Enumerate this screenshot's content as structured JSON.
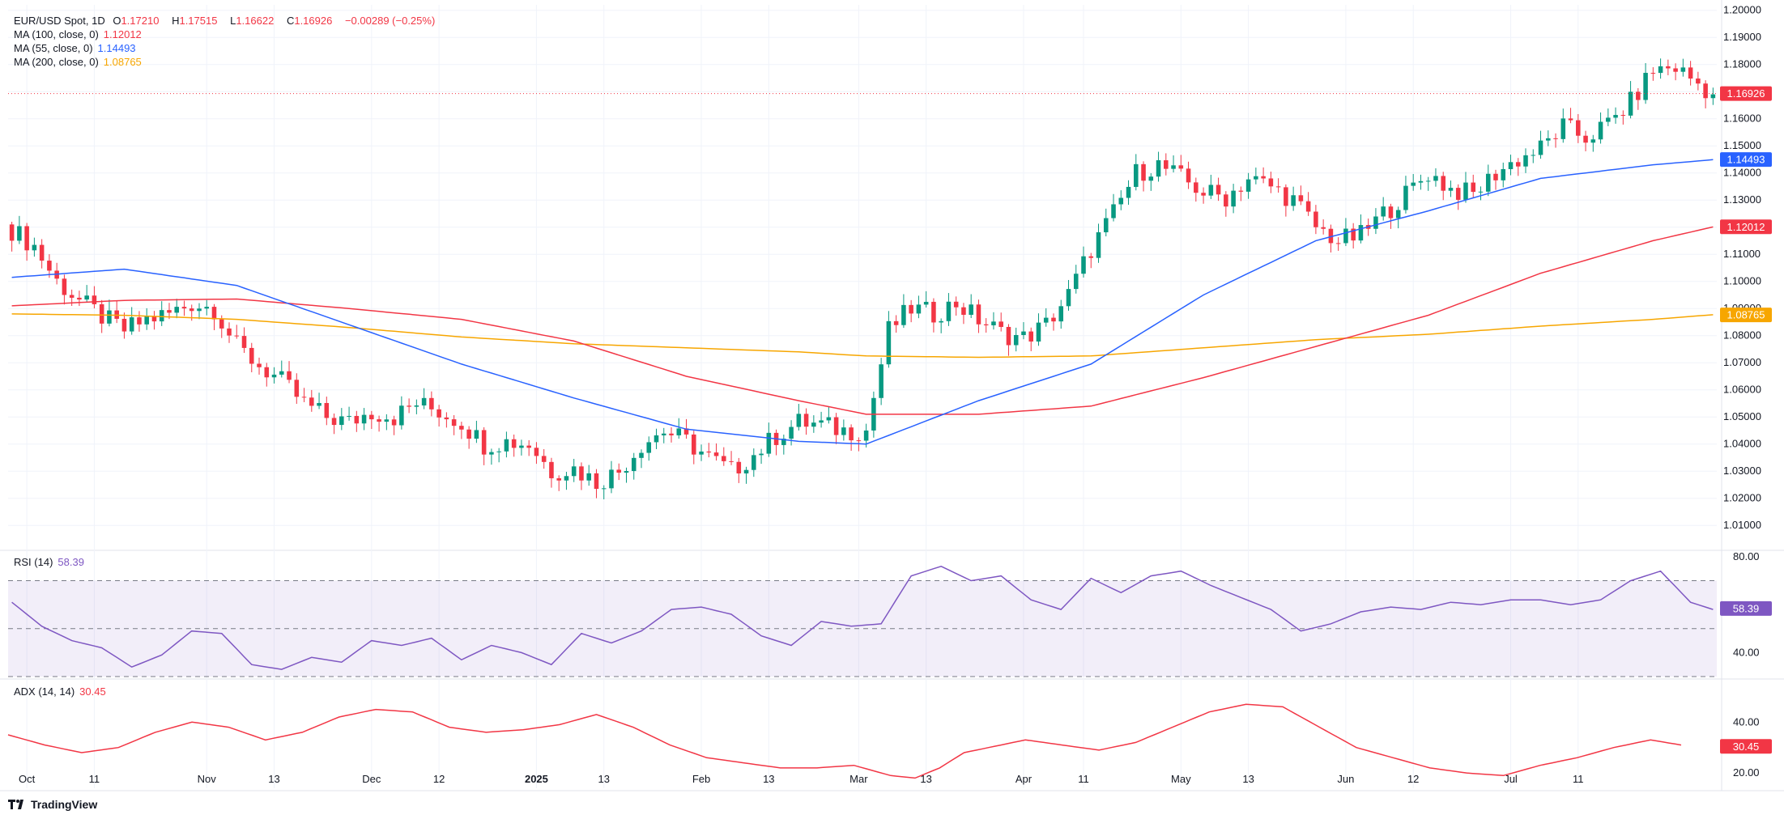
{
  "legend": {
    "symbol": "EUR/USD Spot, 1D",
    "open_k": "O",
    "open_v": "1.17210",
    "high_k": "H",
    "high_v": "1.17515",
    "low_k": "L",
    "low_v": "1.16622",
    "close_k": "C",
    "close_v": "1.16926",
    "change": "−0.00289 (−0.25%)",
    "ma100_label": "MA (100, close, 0)",
    "ma100_value": "1.12012",
    "ma55_label": "MA (55, close, 0)",
    "ma55_value": "1.14493",
    "ma200_label": "MA (200, close, 0)",
    "ma200_value": "1.08765",
    "rsi_label": "RSI (14)",
    "rsi_value": "58.39",
    "adx_label": "ADX (14, 14)",
    "adx_value": "30.45"
  },
  "colors": {
    "up": "#089981",
    "down": "#f23645",
    "ma55": "#2962ff",
    "ma100": "#f23645",
    "ma200": "#f7a600",
    "rsi": "#7e57c2",
    "adx": "#f23645",
    "grid": "#f0f3fa"
  },
  "footer": {
    "brand": "TradingView"
  },
  "chart_data": [
    {
      "type": "candlestick",
      "title": "EUR/USD Spot, 1D",
      "ylim": [
        1.002,
        1.202
      ],
      "y_ticks": [
        "1.20000",
        "1.19000",
        "1.18000",
        "1.17000",
        "1.16000",
        "1.15000",
        "1.14000",
        "1.13000",
        "1.12000",
        "1.11000",
        "1.10000",
        "1.09000",
        "1.08000",
        "1.07000",
        "1.06000",
        "1.05000",
        "1.04000",
        "1.03000",
        "1.02000",
        "1.01000"
      ],
      "x_ticks": [
        "Oct",
        "11",
        "Nov",
        "13",
        "Dec",
        "12",
        "2025",
        "13",
        "Feb",
        "13",
        "Mar",
        "13",
        "Apr",
        "11",
        "May",
        "13",
        "Jun",
        "12",
        "Jul",
        "11"
      ],
      "last_price_label": "1.16926",
      "ma_labels": {
        "ma55": "1.14493",
        "ma100": "1.12012",
        "ma200": "1.08765"
      },
      "anchors": [
        [
          0,
          1.119
        ],
        [
          3,
          1.113
        ],
        [
          6,
          1.1
        ],
        [
          9,
          1.093
        ],
        [
          12,
          1.087
        ],
        [
          15,
          1.082
        ],
        [
          18,
          1.086
        ],
        [
          21,
          1.088
        ],
        [
          24,
          1.092
        ],
        [
          27,
          1.09
        ],
        [
          30,
          1.076
        ],
        [
          33,
          1.069
        ],
        [
          36,
          1.063
        ],
        [
          39,
          1.055
        ],
        [
          42,
          1.05
        ],
        [
          45,
          1.048
        ],
        [
          48,
          1.052
        ],
        [
          51,
          1.05
        ],
        [
          54,
          1.055
        ],
        [
          57,
          1.052
        ],
        [
          60,
          1.048
        ],
        [
          63,
          1.04
        ],
        [
          66,
          1.041
        ],
        [
          69,
          1.04
        ],
        [
          72,
          1.03
        ],
        [
          75,
          1.031
        ],
        [
          78,
          1.026
        ],
        [
          81,
          1.03
        ],
        [
          84,
          1.04
        ],
        [
          87,
          1.045
        ],
        [
          90,
          1.041
        ],
        [
          93,
          1.035
        ],
        [
          96,
          1.03
        ],
        [
          99,
          1.036
        ],
        [
          102,
          1.043
        ],
        [
          105,
          1.048
        ],
        [
          108,
          1.047
        ],
        [
          111,
          1.045
        ],
        [
          114,
          1.045
        ],
        [
          117,
          1.082
        ],
        [
          120,
          1.09
        ],
        [
          123,
          1.088
        ],
        [
          126,
          1.092
        ],
        [
          129,
          1.086
        ],
        [
          132,
          1.081
        ],
        [
          135,
          1.079
        ],
        [
          138,
          1.084
        ],
        [
          141,
          1.095
        ],
        [
          144,
          1.112
        ],
        [
          147,
          1.125
        ],
        [
          150,
          1.14
        ],
        [
          153,
          1.143
        ],
        [
          156,
          1.138
        ],
        [
          159,
          1.133
        ],
        [
          162,
          1.131
        ],
        [
          165,
          1.138
        ],
        [
          168,
          1.135
        ],
        [
          171,
          1.13
        ],
        [
          174,
          1.12
        ],
        [
          177,
          1.115
        ],
        [
          180,
          1.117
        ],
        [
          183,
          1.125
        ],
        [
          186,
          1.132
        ],
        [
          189,
          1.14
        ],
        [
          192,
          1.134
        ],
        [
          195,
          1.132
        ],
        [
          198,
          1.14
        ],
        [
          201,
          1.145
        ],
        [
          204,
          1.149
        ],
        [
          207,
          1.157
        ],
        [
          210,
          1.153
        ],
        [
          213,
          1.158
        ],
        [
          216,
          1.166
        ],
        [
          219,
          1.178
        ],
        [
          222,
          1.179
        ],
        [
          225,
          1.173
        ],
        [
          227,
          1.169
        ]
      ],
      "ma55_anchors": [
        [
          0,
          1.1015
        ],
        [
          15,
          1.1045
        ],
        [
          30,
          1.0985
        ],
        [
          45,
          1.084
        ],
        [
          60,
          1.0695
        ],
        [
          75,
          1.057
        ],
        [
          90,
          1.0455
        ],
        [
          105,
          1.041
        ],
        [
          114,
          1.04
        ],
        [
          129,
          1.056
        ],
        [
          144,
          1.0695
        ],
        [
          159,
          1.095
        ],
        [
          174,
          1.115
        ],
        [
          189,
          1.126
        ],
        [
          204,
          1.138
        ],
        [
          219,
          1.143
        ],
        [
          227,
          1.1449
        ]
      ],
      "ma100_anchors": [
        [
          0,
          1.091
        ],
        [
          15,
          1.093
        ],
        [
          30,
          1.0935
        ],
        [
          45,
          1.09
        ],
        [
          60,
          1.086
        ],
        [
          75,
          1.078
        ],
        [
          90,
          1.065
        ],
        [
          105,
          1.056
        ],
        [
          114,
          1.051
        ],
        [
          129,
          1.051
        ],
        [
          144,
          1.054
        ],
        [
          159,
          1.0645
        ],
        [
          174,
          1.076
        ],
        [
          189,
          1.0875
        ],
        [
          204,
          1.103
        ],
        [
          219,
          1.115
        ],
        [
          227,
          1.1201
        ]
      ],
      "ma200_anchors": [
        [
          0,
          1.088
        ],
        [
          15,
          1.0875
        ],
        [
          30,
          1.086
        ],
        [
          45,
          1.083
        ],
        [
          60,
          1.0795
        ],
        [
          75,
          1.077
        ],
        [
          90,
          1.0755
        ],
        [
          105,
          1.074
        ],
        [
          114,
          1.0725
        ],
        [
          129,
          1.072
        ],
        [
          144,
          1.0725
        ],
        [
          159,
          1.0755
        ],
        [
          174,
          1.0785
        ],
        [
          189,
          1.0805
        ],
        [
          204,
          1.0835
        ],
        [
          219,
          1.086
        ],
        [
          227,
          1.0877
        ]
      ]
    },
    {
      "type": "line",
      "title": "RSI (14)",
      "ylim": [
        30,
        82
      ],
      "y_ticks": [
        "80.00",
        "40.00"
      ],
      "band": [
        30,
        70
      ],
      "mid": 50,
      "last_label": "58.39",
      "anchors": [
        [
          0,
          61
        ],
        [
          4,
          51
        ],
        [
          8,
          45
        ],
        [
          12,
          42
        ],
        [
          16,
          34
        ],
        [
          20,
          39
        ],
        [
          24,
          49
        ],
        [
          28,
          48
        ],
        [
          32,
          35
        ],
        [
          36,
          33
        ],
        [
          40,
          38
        ],
        [
          44,
          36
        ],
        [
          48,
          45
        ],
        [
          52,
          43
        ],
        [
          56,
          46
        ],
        [
          60,
          37
        ],
        [
          64,
          43
        ],
        [
          68,
          40
        ],
        [
          72,
          35
        ],
        [
          76,
          48
        ],
        [
          80,
          44
        ],
        [
          84,
          49
        ],
        [
          88,
          58
        ],
        [
          92,
          59
        ],
        [
          96,
          56
        ],
        [
          100,
          47
        ],
        [
          104,
          43
        ],
        [
          108,
          53
        ],
        [
          112,
          51
        ],
        [
          116,
          52
        ],
        [
          120,
          72
        ],
        [
          124,
          76
        ],
        [
          128,
          70
        ],
        [
          132,
          72
        ],
        [
          136,
          62
        ],
        [
          140,
          58
        ],
        [
          144,
          71
        ],
        [
          148,
          65
        ],
        [
          152,
          72
        ],
        [
          156,
          74
        ],
        [
          160,
          68
        ],
        [
          164,
          63
        ],
        [
          168,
          58
        ],
        [
          172,
          49
        ],
        [
          176,
          52
        ],
        [
          180,
          57
        ],
        [
          184,
          59
        ],
        [
          188,
          58
        ],
        [
          192,
          61
        ],
        [
          196,
          60
        ],
        [
          200,
          62
        ],
        [
          204,
          62
        ],
        [
          208,
          60
        ],
        [
          212,
          62
        ],
        [
          216,
          70
        ],
        [
          220,
          74
        ],
        [
          224,
          61
        ],
        [
          227,
          58
        ]
      ]
    },
    {
      "type": "line",
      "title": "ADX (14, 14)",
      "ylim": [
        14,
        56
      ],
      "y_ticks": [
        "40.00",
        "20.00"
      ],
      "last_label": "30.45",
      "anchors": [
        [
          0,
          35
        ],
        [
          6,
          31
        ],
        [
          12,
          28
        ],
        [
          18,
          30
        ],
        [
          24,
          36
        ],
        [
          30,
          40
        ],
        [
          36,
          38
        ],
        [
          42,
          33
        ],
        [
          48,
          36
        ],
        [
          54,
          42
        ],
        [
          60,
          45
        ],
        [
          66,
          44
        ],
        [
          72,
          38
        ],
        [
          78,
          36
        ],
        [
          84,
          37
        ],
        [
          90,
          39
        ],
        [
          96,
          43
        ],
        [
          102,
          38
        ],
        [
          108,
          31
        ],
        [
          114,
          26
        ],
        [
          120,
          24
        ],
        [
          126,
          22
        ],
        [
          132,
          22
        ],
        [
          138,
          23
        ],
        [
          144,
          19
        ],
        [
          148,
          18
        ],
        [
          152,
          22
        ],
        [
          156,
          28
        ],
        [
          160,
          30
        ],
        [
          166,
          33
        ],
        [
          172,
          31
        ],
        [
          178,
          29
        ],
        [
          184,
          32
        ],
        [
          190,
          38
        ],
        [
          196,
          44
        ],
        [
          202,
          47
        ],
        [
          208,
          46
        ],
        [
          214,
          38
        ],
        [
          220,
          30
        ],
        [
          226,
          26
        ],
        [
          232,
          22
        ],
        [
          238,
          20
        ],
        [
          244,
          19
        ],
        [
          250,
          23
        ],
        [
          256,
          26
        ],
        [
          262,
          30
        ],
        [
          268,
          33
        ],
        [
          273,
          31
        ]
      ],
      "x_max": 273
    }
  ]
}
